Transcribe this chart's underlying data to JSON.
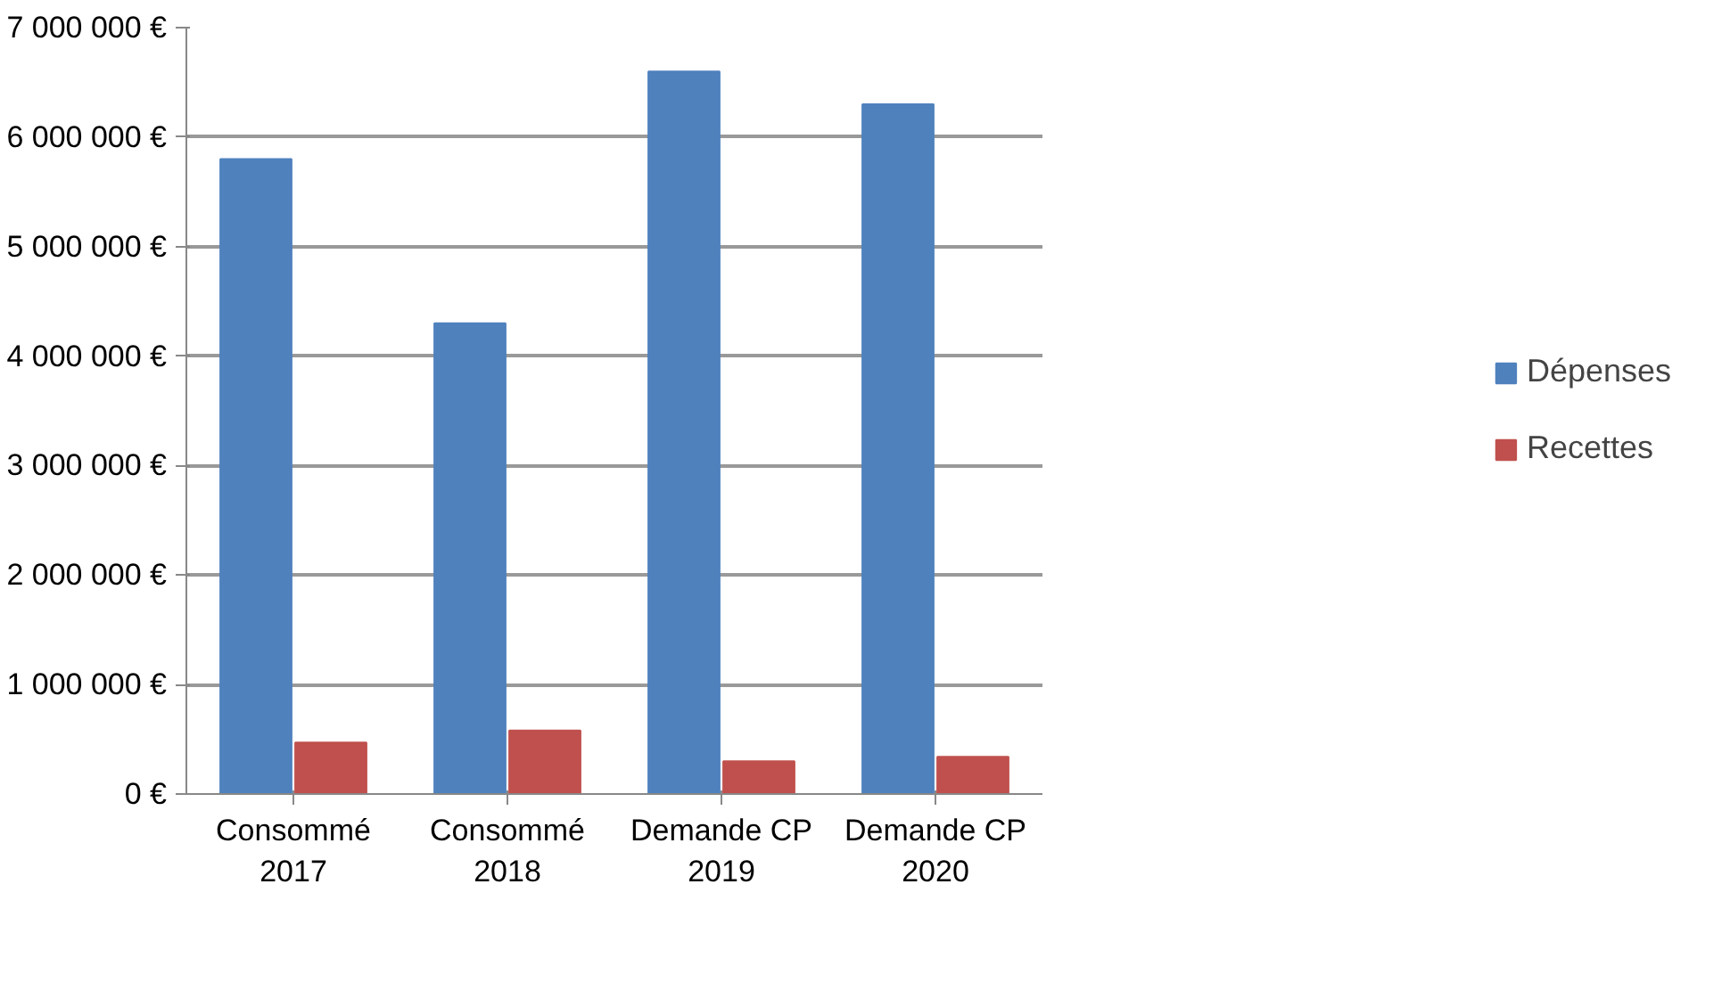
{
  "chart_data": {
    "type": "bar",
    "categories": [
      "Consommé\n2017",
      "Consommé\n2018",
      "Demande CP\n2019",
      "Demande CP\n2020"
    ],
    "series": [
      {
        "name": "Dépenses",
        "color": "#4f81bd",
        "values": [
          5800000,
          4300000,
          6600000,
          6300000
        ]
      },
      {
        "name": "Recettes",
        "color": "#c0504d",
        "values": [
          470000,
          580000,
          300000,
          340000
        ]
      }
    ],
    "ylim": [
      0,
      7000000
    ],
    "yticks": [
      {
        "value": 0,
        "label": "0 €"
      },
      {
        "value": 1000000,
        "label": "1 000 000 €"
      },
      {
        "value": 2000000,
        "label": "2 000 000 €"
      },
      {
        "value": 3000000,
        "label": "3 000 000 €"
      },
      {
        "value": 4000000,
        "label": "4 000 000 €"
      },
      {
        "value": 5000000,
        "label": "5 000 000 €"
      },
      {
        "value": 6000000,
        "label": "6 000 000 €"
      },
      {
        "value": 7000000,
        "label": "7 000 000 €"
      }
    ],
    "grid": "y",
    "legend": "right"
  }
}
